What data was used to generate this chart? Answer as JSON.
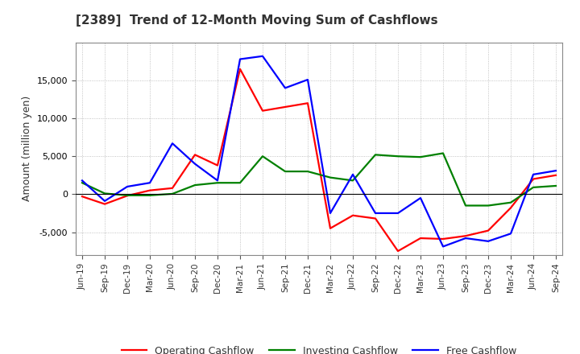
{
  "title": "[2389]  Trend of 12-Month Moving Sum of Cashflows",
  "ylabel": "Amount (million yen)",
  "xlabels": [
    "Jun-19",
    "Sep-19",
    "Dec-19",
    "Mar-20",
    "Jun-20",
    "Sep-20",
    "Dec-20",
    "Mar-21",
    "Jun-21",
    "Sep-21",
    "Dec-21",
    "Mar-22",
    "Jun-22",
    "Sep-22",
    "Dec-22",
    "Mar-23",
    "Jun-23",
    "Sep-23",
    "Dec-23",
    "Mar-24",
    "Jun-24",
    "Sep-24"
  ],
  "operating": [
    -300,
    -1300,
    -200,
    500,
    800,
    5200,
    3800,
    16500,
    11000,
    11500,
    12000,
    -4500,
    -2800,
    -3200,
    -7500,
    -5800,
    -5900,
    -5500,
    -4800,
    -1800,
    2000,
    2500
  ],
  "investing": [
    1500,
    100,
    -150,
    -150,
    50,
    1200,
    1500,
    1500,
    5000,
    3000,
    3000,
    2200,
    1800,
    5200,
    5000,
    4900,
    5400,
    -1500,
    -1500,
    -1100,
    900,
    1100
  ],
  "free": [
    1800,
    -900,
    1000,
    1500,
    6700,
    4000,
    1800,
    17800,
    18200,
    14000,
    15100,
    -2500,
    2600,
    -2500,
    -2500,
    -500,
    -6900,
    -5800,
    -6200,
    -5200,
    2600,
    3100
  ],
  "ylim": [
    -8000,
    20000
  ],
  "yticks": [
    -5000,
    0,
    5000,
    10000,
    15000
  ],
  "legend_labels": [
    "Operating Cashflow",
    "Investing Cashflow",
    "Free Cashflow"
  ],
  "line_colors": [
    "#ff0000",
    "#008000",
    "#0000ff"
  ],
  "bg_color": "#ffffff",
  "plot_bg": "#ffffff",
  "grid_color": "#aaaaaa",
  "title_color": "#333333"
}
